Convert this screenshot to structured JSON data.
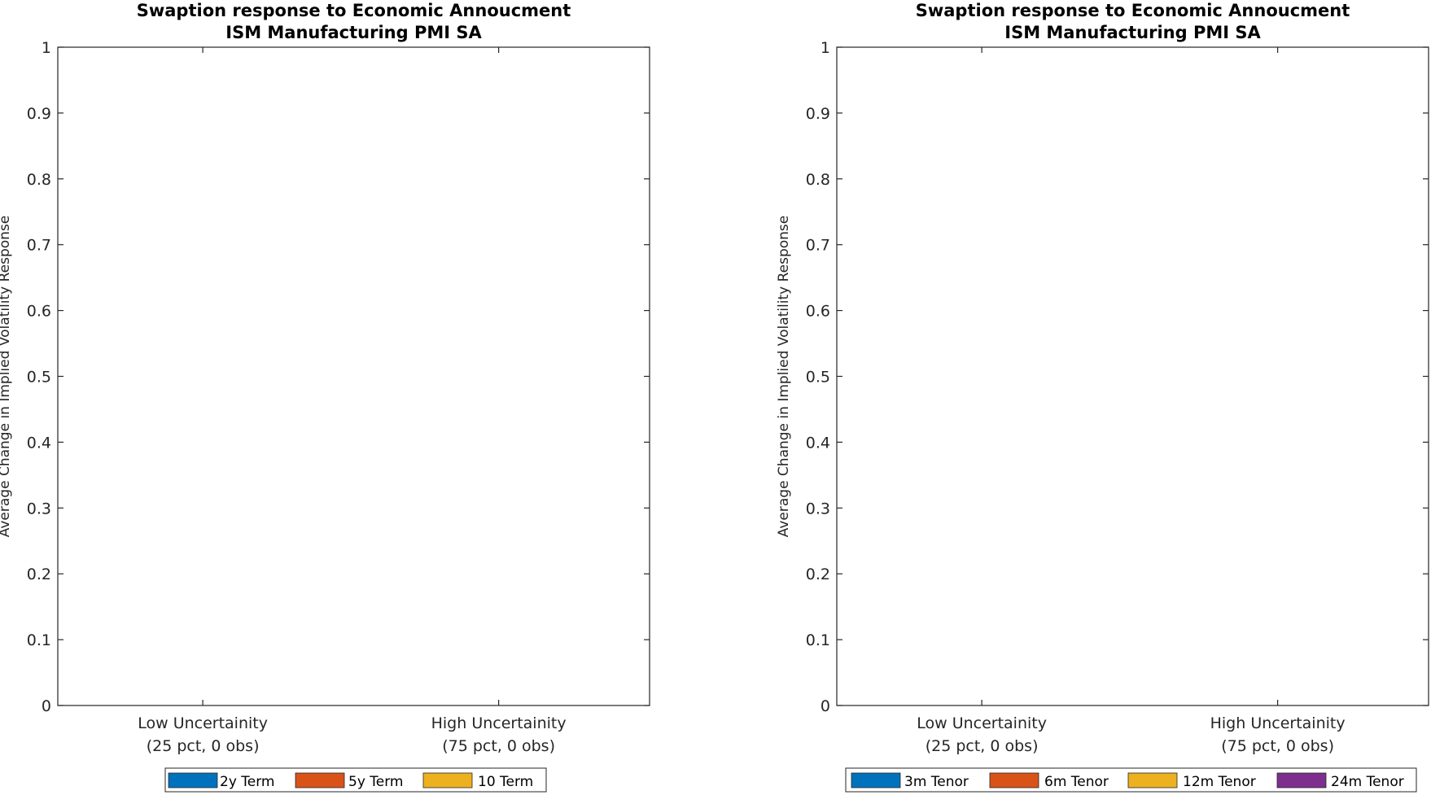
{
  "chart_data": [
    {
      "type": "bar",
      "title": "Swaption response to Economic Annoucment",
      "subtitle": "ISM Manufacturing PMI SA",
      "ylabel": "Average Change in Implied Volatility Response",
      "xlabel": "",
      "ylim": [
        0,
        1
      ],
      "yticks": [
        0,
        0.1,
        0.2,
        0.3,
        0.4,
        0.5,
        0.6,
        0.7,
        0.8,
        0.9,
        1
      ],
      "ytick_labels": [
        "0",
        "0.1",
        "0.2",
        "0.3",
        "0.4",
        "0.5",
        "0.6",
        "0.7",
        "0.8",
        "0.9",
        "1"
      ],
      "categories": [
        {
          "line1": "Low Uncertainity",
          "line2": "(25 pct, 0 obs)"
        },
        {
          "line1": "High Uncertainity",
          "line2": "(75 pct, 0 obs)"
        }
      ],
      "series": [
        {
          "name": "2y Term",
          "color": "#0072BD",
          "values": [
            null,
            null
          ]
        },
        {
          "name": "5y Term",
          "color": "#D95319",
          "values": [
            null,
            null
          ]
        },
        {
          "name": "10 Term",
          "color": "#EDB120",
          "values": [
            null,
            null
          ]
        }
      ],
      "legend_position": "bottom",
      "grid": false
    },
    {
      "type": "bar",
      "title": "Swaption response to Economic Annoucment",
      "subtitle": "ISM Manufacturing PMI SA",
      "ylabel": "Average Change in Implied Volatility Response",
      "xlabel": "",
      "ylim": [
        0,
        1
      ],
      "yticks": [
        0,
        0.1,
        0.2,
        0.3,
        0.4,
        0.5,
        0.6,
        0.7,
        0.8,
        0.9,
        1
      ],
      "ytick_labels": [
        "0",
        "0.1",
        "0.2",
        "0.3",
        "0.4",
        "0.5",
        "0.6",
        "0.7",
        "0.8",
        "0.9",
        "1"
      ],
      "categories": [
        {
          "line1": "Low Uncertainity",
          "line2": "(25 pct, 0 obs)"
        },
        {
          "line1": "High Uncertainity",
          "line2": "(75 pct, 0 obs)"
        }
      ],
      "series": [
        {
          "name": "3m Tenor",
          "color": "#0072BD",
          "values": [
            null,
            null
          ]
        },
        {
          "name": "6m Tenor",
          "color": "#D95319",
          "values": [
            null,
            null
          ]
        },
        {
          "name": "12m Tenor",
          "color": "#EDB120",
          "values": [
            null,
            null
          ]
        },
        {
          "name": "24m Tenor",
          "color": "#7E2F8E",
          "values": [
            null,
            null
          ]
        }
      ],
      "legend_position": "bottom",
      "grid": false
    }
  ]
}
